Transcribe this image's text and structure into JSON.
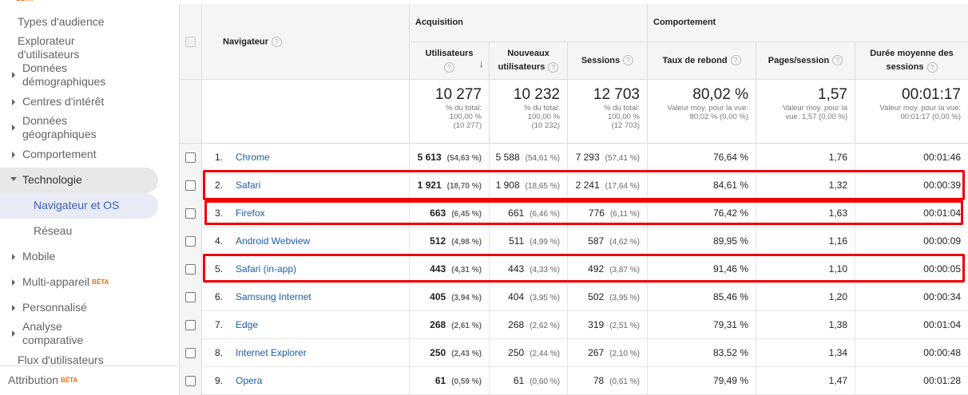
{
  "sidebar": {
    "beta_top": "BÊTA",
    "items": [
      {
        "lines": [
          "Types d'audience"
        ]
      },
      {
        "lines": [
          "Explorateur",
          "d'utilisateurs"
        ]
      },
      {
        "lines": [
          "Données",
          "démographiques"
        ]
      },
      {
        "lines": [
          "Centres d'intérêt"
        ]
      },
      {
        "lines": [
          "Données",
          "géographiques"
        ]
      },
      {
        "lines": [
          "Comportement"
        ]
      },
      {
        "lines": [
          "Technologie"
        ]
      },
      {
        "lines": [
          "Navigateur et OS"
        ]
      },
      {
        "lines": [
          "Réseau"
        ]
      },
      {
        "lines": [
          "Mobile"
        ]
      },
      {
        "lines": [
          "Multi-appareil"
        ],
        "badge": "BÊTA"
      },
      {
        "lines": [
          "Personnalisé"
        ]
      },
      {
        "lines": [
          "Analyse",
          "comparative"
        ]
      },
      {
        "lines": [
          "Flux d'utilisateurs"
        ]
      }
    ],
    "attribution": {
      "label": "Attribution",
      "badge": "BÊTA"
    }
  },
  "table": {
    "group_headers": [
      "Acquisition",
      "Comportement"
    ],
    "dimension_header": "Navigateur",
    "columns": [
      [
        "Utilisateurs"
      ],
      [
        "Nouveaux",
        "utilisateurs"
      ],
      [
        "Sessions"
      ],
      [
        "Taux de rebond"
      ],
      [
        "Pages/session"
      ],
      [
        "Durée moyenne des",
        "sessions"
      ]
    ],
    "totals": [
      {
        "value": "10 277",
        "notes": [
          "% du total:",
          "100,00 %",
          "(10 277)"
        ]
      },
      {
        "value": "10 232",
        "notes": [
          "% du total:",
          "100,00 %",
          "(10 232)"
        ]
      },
      {
        "value": "12 703",
        "notes": [
          "% du total:",
          "100,00 %",
          "(12 703)"
        ]
      },
      {
        "value": "80,02 %",
        "notes": [
          "Valeur moy. pour la vue:",
          "80,02 % (0,00 %)"
        ]
      },
      {
        "value": "1,57",
        "notes": [
          "Valeur moy. pour la",
          "vue: 1,57 (0,00 %)"
        ]
      },
      {
        "value": "00:01:17",
        "notes": [
          "Valeur moy. pour la vue:",
          "00:01:17 (0,00 %)"
        ]
      }
    ],
    "rows": [
      {
        "index": "1.",
        "name": "Chrome",
        "cells": [
          {
            "value": "5 613",
            "share": "(54,63 %)"
          },
          {
            "value": "5 588",
            "share": "(54,61 %)"
          },
          {
            "value": "7 293",
            "share": "(57,41 %)"
          },
          {
            "value": "76,64 %"
          },
          {
            "value": "1,76"
          },
          {
            "value": "00:01:46"
          }
        ]
      },
      {
        "index": "2.",
        "name": "Safari",
        "cells": [
          {
            "value": "1 921",
            "share": "(18,70 %)"
          },
          {
            "value": "1 908",
            "share": "(18,65 %)"
          },
          {
            "value": "2 241",
            "share": "(17,64 %)"
          },
          {
            "value": "84,61 %"
          },
          {
            "value": "1,32"
          },
          {
            "value": "00:00:39"
          }
        ]
      },
      {
        "index": "3.",
        "name": "Firefox",
        "cells": [
          {
            "value": "663",
            "share": "(6,45 %)"
          },
          {
            "value": "661",
            "share": "(6,46 %)"
          },
          {
            "value": "776",
            "share": "(6,11 %)"
          },
          {
            "value": "76,42 %"
          },
          {
            "value": "1,63"
          },
          {
            "value": "00:01:04"
          }
        ]
      },
      {
        "index": "4.",
        "name": "Android Webview",
        "cells": [
          {
            "value": "512",
            "share": "(4,98 %)"
          },
          {
            "value": "511",
            "share": "(4,99 %)"
          },
          {
            "value": "587",
            "share": "(4,62 %)"
          },
          {
            "value": "89,95 %"
          },
          {
            "value": "1,16"
          },
          {
            "value": "00:00:09"
          }
        ]
      },
      {
        "index": "5.",
        "name": "Safari (in-app)",
        "cells": [
          {
            "value": "443",
            "share": "(4,31 %)"
          },
          {
            "value": "443",
            "share": "(4,33 %)"
          },
          {
            "value": "492",
            "share": "(3,87 %)"
          },
          {
            "value": "91,46 %"
          },
          {
            "value": "1,10"
          },
          {
            "value": "00:00:05"
          }
        ]
      },
      {
        "index": "6.",
        "name": "Samsung Internet",
        "cells": [
          {
            "value": "405",
            "share": "(3,94 %)"
          },
          {
            "value": "404",
            "share": "(3,95 %)"
          },
          {
            "value": "502",
            "share": "(3,95 %)"
          },
          {
            "value": "85,46 %"
          },
          {
            "value": "1,20"
          },
          {
            "value": "00:00:34"
          }
        ]
      },
      {
        "index": "7.",
        "name": "Edge",
        "cells": [
          {
            "value": "268",
            "share": "(2,61 %)"
          },
          {
            "value": "268",
            "share": "(2,62 %)"
          },
          {
            "value": "319",
            "share": "(2,51 %)"
          },
          {
            "value": "79,31 %"
          },
          {
            "value": "1,38"
          },
          {
            "value": "00:01:04"
          }
        ]
      },
      {
        "index": "8.",
        "name": "Internet Explorer",
        "cells": [
          {
            "value": "250",
            "share": "(2,43 %)"
          },
          {
            "value": "250",
            "share": "(2,44 %)"
          },
          {
            "value": "267",
            "share": "(2,10 %)"
          },
          {
            "value": "83,52 %"
          },
          {
            "value": "1,34"
          },
          {
            "value": "00:00:48"
          }
        ]
      },
      {
        "index": "9.",
        "name": "Opera",
        "cells": [
          {
            "value": "61",
            "share": "(0,59 %)"
          },
          {
            "value": "61",
            "share": "(0,60 %)"
          },
          {
            "value": "78",
            "share": "(0,61 %)"
          },
          {
            "value": "79,49 %"
          },
          {
            "value": "1,47"
          },
          {
            "value": "00:01:28"
          }
        ]
      }
    ]
  }
}
